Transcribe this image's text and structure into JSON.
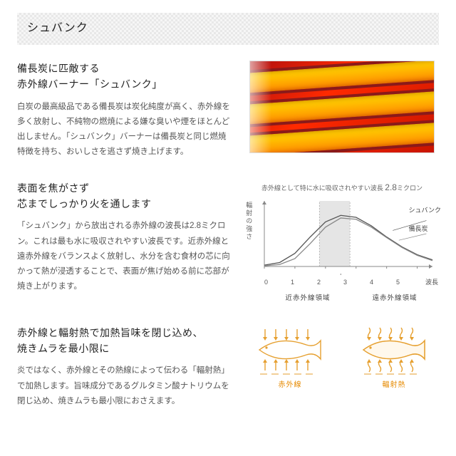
{
  "header": {
    "title": "シュバンク"
  },
  "section1": {
    "title_line1": "備長炭に匹敵する",
    "title_line2": "赤外線バーナー「シュバンク」",
    "body": "白炭の最高級品である備長炭は炭化純度が高く、赤外線を多く放射し、不純物の燃焼による嫌な臭いや煙をほとんど出しません。「シュバンク」バーナーは備長炭と同じ燃焼特徴を持ち、おいしさを逃さず焼き上げます。"
  },
  "section2": {
    "title_line1": "表面を焦がさず",
    "title_line2": "芯までしっかり火を通します",
    "body": "「シュバンク」から放出される赤外線の波長は2.8ミクロン。これは最も水に吸収されやすい波長です。近赤外線と遠赤外線をバランスよく放射し、水分を含む食材の芯に向かって熱が浸透することで、表面が焦げ始める前に芯部が焼き上がります。",
    "chart": {
      "caption_pre": "赤外線として特に水に吸収されやすい波長",
      "caption_val": "2.8",
      "caption_unit": "ミクロン",
      "ylabel": "輻射の強さ",
      "xaxis_label": "波長",
      "ticks": [
        "0",
        "1",
        "2",
        "3",
        "4",
        "5"
      ],
      "region_near": "近赤外線領域",
      "region_far": "遠赤外線領域",
      "legend_schwank": "シュバンク",
      "legend_bincho": "備長炭",
      "band_x": [
        1.8,
        2.8
      ],
      "schwank_curve": [
        [
          0,
          2
        ],
        [
          0.5,
          6
        ],
        [
          1,
          20
        ],
        [
          1.5,
          45
        ],
        [
          2,
          68
        ],
        [
          2.5,
          78
        ],
        [
          3,
          75
        ],
        [
          3.5,
          62
        ],
        [
          4,
          45
        ],
        [
          4.5,
          30
        ],
        [
          5,
          18
        ],
        [
          5.5,
          10
        ]
      ],
      "bincho_curve": [
        [
          0,
          1
        ],
        [
          0.5,
          3
        ],
        [
          1,
          12
        ],
        [
          1.5,
          35
        ],
        [
          2,
          60
        ],
        [
          2.5,
          74
        ],
        [
          3,
          72
        ],
        [
          3.5,
          60
        ],
        [
          4,
          44
        ],
        [
          4.5,
          29
        ],
        [
          5,
          17
        ],
        [
          5.5,
          9
        ]
      ],
      "colors": {
        "axis": "#888888",
        "grid": "#aaaaaa",
        "band": "#cfcfcf",
        "schwank": "#555555",
        "bincho": "#888888"
      }
    }
  },
  "section3": {
    "title_line1": "赤外線と輻射熱で加熱旨味を閉じ込め、",
    "title_line2": "焼きムラを最小限に",
    "body": "炎ではなく、赤外線とその熱線によって伝わる「輻射熱」で加熱します。旨味成分であるグルタミン酸ナトリウムを閉じ込め、焼きムラも最小限におさえます。",
    "fish": {
      "label_ir": "赤外線",
      "label_rad": "輻射熱",
      "colors": {
        "stroke": "#e6a030",
        "fill_light": "#fff4e0"
      }
    }
  }
}
